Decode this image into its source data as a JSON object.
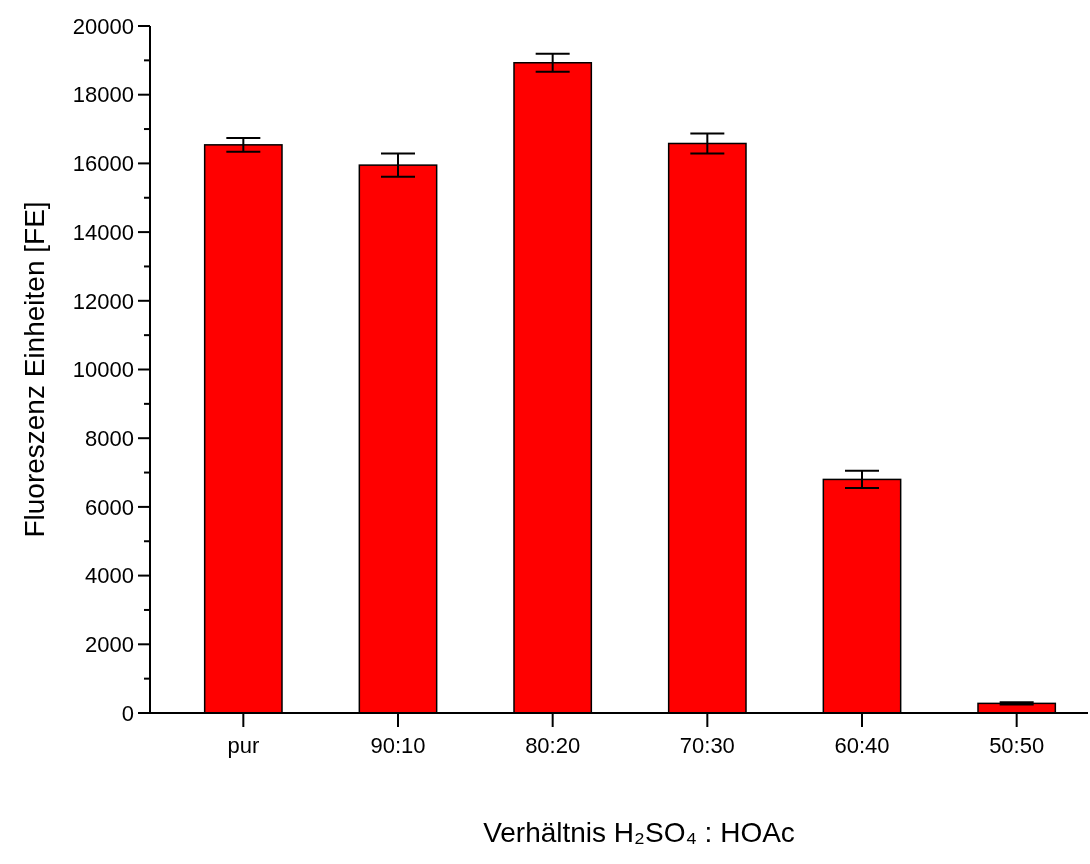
{
  "chart_data": {
    "type": "bar",
    "xlabel": "Verhältnis H₂SO₄ : HOAc",
    "ylabel": "Fluoreszenz Einheiten [FE]",
    "categories": [
      "pur",
      "90:10",
      "80:20",
      "70:30",
      "60:40",
      "50:50"
    ],
    "values": [
      16540,
      15950,
      18930,
      16580,
      6800,
      280
    ],
    "errors": [
      200,
      340,
      260,
      290,
      250,
      30
    ],
    "color": "#ff0000",
    "ylim": [
      0,
      20000
    ],
    "yticks": [
      0,
      {
        "value": 1000,
        "label": null
      },
      2000,
      {
        "value": 3000,
        "label": null
      },
      4000,
      {
        "value": 5000,
        "label": null
      },
      6000,
      {
        "value": 7000,
        "label": null
      },
      8000,
      {
        "value": 9000,
        "label": null
      },
      10000,
      {
        "value": 11000,
        "label": null
      },
      12000,
      {
        "value": 13000,
        "label": null
      },
      14000,
      {
        "value": 15000,
        "label": null
      },
      16000,
      {
        "value": 17000,
        "label": null
      },
      18000,
      {
        "value": 19000,
        "label": null
      },
      20000
    ],
    "grid": false
  }
}
